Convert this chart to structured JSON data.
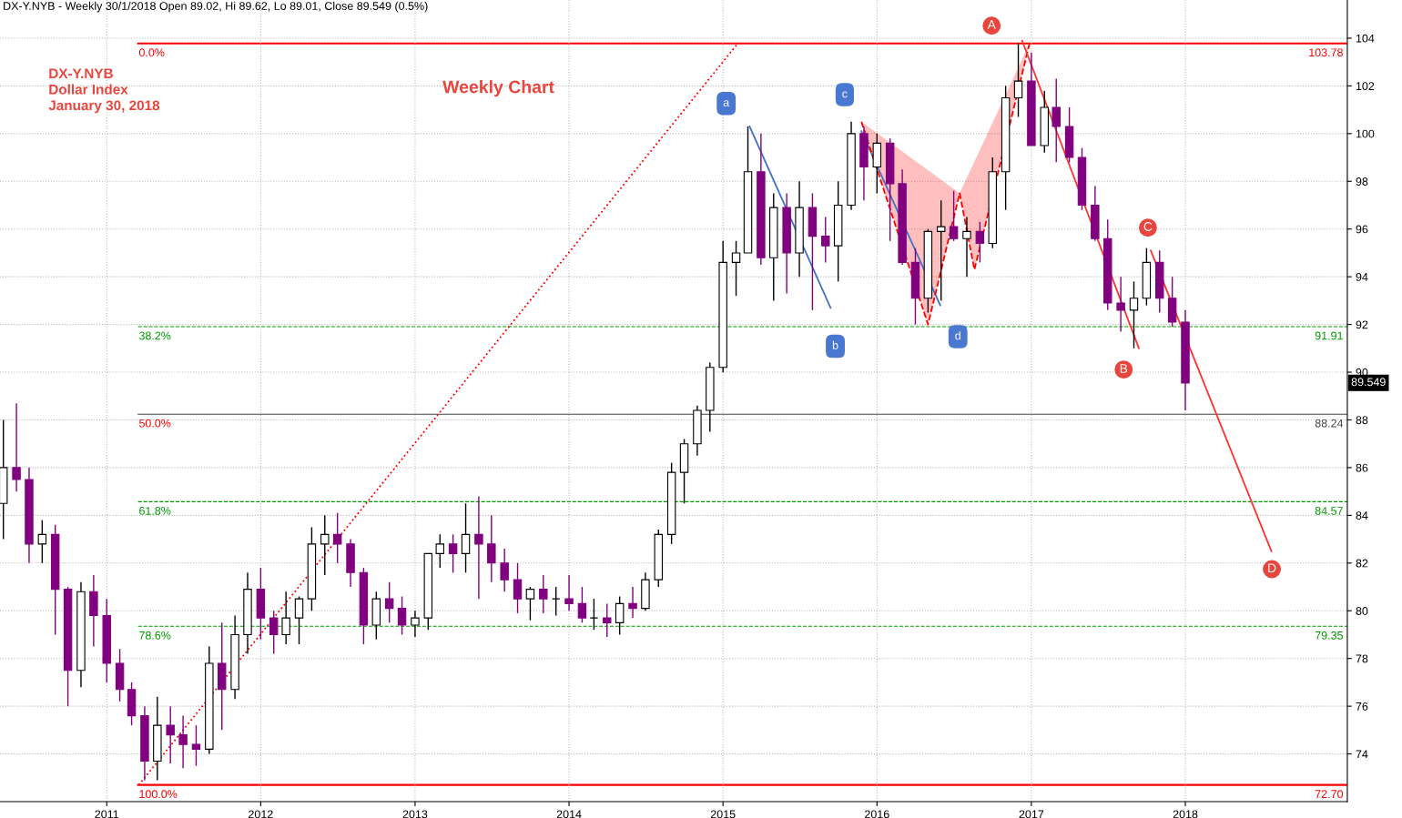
{
  "chart_data": {
    "type": "candlestick",
    "title": "DX-Y.NYB - Weekly 30/1/2018 Open 89.02, Hi 89.62, Lo 89.01, Close 89.549 (0.5%)",
    "colors": [
      "#ffffff",
      "#800080",
      "#800080",
      "#ffffff",
      "#800080",
      "#800080",
      "#ffffff",
      "#800080",
      "#800080",
      "#800080",
      "#800080",
      "#800080",
      "#ffffff",
      "#800080",
      "#800080",
      "#800080",
      "#ffffff",
      "#800080",
      "#ffffff",
      "#ffffff",
      "#800080",
      "#800080",
      "#ffffff",
      "#ffffff",
      "#ffffff",
      "#ffffff",
      "#800080",
      "#800080",
      "#800080",
      "#ffffff",
      "#800080",
      "#800080",
      "#ffffff",
      "#ffffff",
      "#ffffff",
      "#800080",
      "#ffffff",
      "#800080",
      "#800080",
      "#800080",
      "#800080",
      "#ffffff",
      "#800080",
      "#000000",
      "#800080",
      "#800080",
      "#000000",
      "#800080",
      "#ffffff",
      "#800080",
      "#ffffff",
      "#ffffff",
      "#ffffff",
      "#ffffff",
      "#ffffff",
      "#ffffff",
      "#ffffff",
      "#ffffff",
      "#ffffff",
      "#800080",
      "#ffffff",
      "#800080",
      "#ffffff",
      "#800080",
      "#800080",
      "#ffffff",
      "#ffffff",
      "#800080",
      "#ffffff",
      "#800080",
      "#800080",
      "#800080",
      "#ffffff",
      "#ffffff",
      "#800080",
      "#ffffff",
      "#800080",
      "#ffffff",
      "#ffffff",
      "#ffffff",
      "#800080",
      "#ffffff",
      "#800080",
      "#800080",
      "#800080",
      "#800080",
      "#800080",
      "#800080",
      "#ffffff",
      "#ffffff",
      "#800080",
      "#800080",
      "#800080"
    ],
    "x": [
      "2010-05",
      "2010-06",
      "2010-07",
      "2010-08",
      "2010-09",
      "2010-10",
      "2010-11",
      "2010-12",
      "2011-01",
      "2011-02",
      "2011-03",
      "2011-04",
      "2011-05",
      "2011-06",
      "2011-07",
      "2011-08",
      "2011-09",
      "2011-10",
      "2011-11",
      "2011-12",
      "2012-01",
      "2012-02",
      "2012-03",
      "2012-04",
      "2012-05",
      "2012-06",
      "2012-07",
      "2012-08",
      "2012-09",
      "2012-10",
      "2012-11",
      "2012-12",
      "2013-01",
      "2013-02",
      "2013-03",
      "2013-04",
      "2013-05",
      "2013-06",
      "2013-07",
      "2013-08",
      "2013-09",
      "2013-10",
      "2013-11",
      "2013-12",
      "2014-01",
      "2014-02",
      "2014-03",
      "2014-04",
      "2014-05",
      "2014-06",
      "2014-07",
      "2014-08",
      "2014-09",
      "2014-10",
      "2014-11",
      "2014-12",
      "2015-01",
      "2015-02",
      "2015-03",
      "2015-04",
      "2015-05",
      "2015-06",
      "2015-07",
      "2015-08",
      "2015-09",
      "2015-10",
      "2015-11",
      "2015-12",
      "2016-01",
      "2016-02",
      "2016-03",
      "2016-04",
      "2016-05",
      "2016-06",
      "2016-07",
      "2016-08",
      "2016-09",
      "2016-10",
      "2016-11",
      "2016-12",
      "2017-01",
      "2017-02",
      "2017-03",
      "2017-04",
      "2017-05",
      "2017-06",
      "2017-07",
      "2017-08",
      "2017-09",
      "2017-10",
      "2017-11",
      "2017-12",
      "2018-01"
    ],
    "ohlc": [
      [
        84.5,
        88.0,
        83.0,
        86.0
      ],
      [
        86.0,
        88.7,
        85.0,
        85.5
      ],
      [
        85.5,
        86.0,
        82.0,
        82.8
      ],
      [
        82.8,
        83.8,
        82.0,
        83.2
      ],
      [
        83.2,
        83.6,
        79.0,
        80.9
      ],
      [
        80.9,
        81.0,
        76.0,
        77.5
      ],
      [
        77.5,
        81.2,
        76.8,
        80.8
      ],
      [
        80.8,
        81.5,
        78.5,
        79.8
      ],
      [
        79.8,
        80.5,
        77.0,
        77.8
      ],
      [
        77.8,
        78.4,
        76.2,
        76.7
      ],
      [
        76.7,
        77.0,
        75.2,
        75.6
      ],
      [
        75.6,
        76.0,
        72.9,
        73.7
      ],
      [
        73.7,
        76.4,
        72.9,
        75.2
      ],
      [
        75.2,
        76.0,
        73.6,
        74.8
      ],
      [
        74.8,
        75.6,
        73.4,
        74.4
      ],
      [
        74.4,
        75.2,
        73.5,
        74.2
      ],
      [
        74.2,
        78.5,
        74.0,
        77.8
      ],
      [
        77.8,
        79.5,
        75.0,
        76.7
      ],
      [
        76.7,
        79.8,
        76.3,
        79.0
      ],
      [
        79.0,
        81.6,
        78.2,
        80.9
      ],
      [
        80.9,
        81.8,
        78.8,
        79.7
      ],
      [
        79.7,
        80.0,
        78.2,
        79.0
      ],
      [
        79.0,
        80.8,
        78.6,
        79.7
      ],
      [
        79.7,
        80.6,
        78.6,
        80.5
      ],
      [
        80.5,
        83.5,
        80.0,
        82.8
      ],
      [
        82.8,
        84.0,
        81.5,
        83.2
      ],
      [
        83.2,
        84.1,
        82.0,
        82.8
      ],
      [
        82.8,
        83.0,
        81.0,
        81.6
      ],
      [
        81.6,
        81.8,
        78.6,
        79.4
      ],
      [
        79.4,
        80.8,
        78.8,
        80.5
      ],
      [
        80.5,
        81.2,
        79.5,
        80.1
      ],
      [
        80.1,
        80.6,
        79.0,
        79.4
      ],
      [
        79.4,
        80.0,
        78.9,
        79.7
      ],
      [
        79.7,
        82.4,
        79.2,
        82.4
      ],
      [
        82.4,
        83.2,
        81.8,
        82.8
      ],
      [
        82.8,
        83.2,
        81.6,
        82.4
      ],
      [
        82.4,
        84.5,
        81.6,
        83.2
      ],
      [
        83.2,
        84.8,
        80.5,
        82.8
      ],
      [
        82.8,
        84.0,
        81.2,
        82.0
      ],
      [
        82.0,
        82.6,
        80.8,
        81.3
      ],
      [
        81.3,
        82.0,
        79.9,
        80.5
      ],
      [
        80.5,
        81.0,
        79.6,
        80.9
      ],
      [
        80.9,
        81.5,
        79.9,
        80.5
      ],
      [
        80.5,
        81.0,
        79.8,
        80.5
      ],
      [
        80.5,
        81.5,
        80.0,
        80.3
      ],
      [
        80.3,
        81.0,
        79.5,
        79.7
      ],
      [
        79.7,
        80.5,
        79.2,
        79.7
      ],
      [
        79.7,
        80.3,
        78.9,
        79.5
      ],
      [
        79.5,
        80.6,
        79.0,
        80.3
      ],
      [
        80.3,
        81.0,
        79.7,
        80.1
      ],
      [
        80.1,
        81.6,
        80.0,
        81.3
      ],
      [
        81.3,
        83.4,
        81.0,
        83.2
      ],
      [
        83.2,
        86.2,
        82.8,
        85.8
      ],
      [
        85.8,
        87.2,
        84.5,
        87.0
      ],
      [
        87.0,
        88.6,
        86.5,
        88.4
      ],
      [
        88.4,
        90.4,
        87.5,
        90.2
      ],
      [
        90.2,
        95.5,
        90.0,
        94.6
      ],
      [
        94.6,
        95.5,
        93.2,
        95.0
      ],
      [
        95.0,
        100.3,
        95.0,
        98.4
      ],
      [
        98.4,
        100.0,
        94.5,
        94.8
      ],
      [
        94.8,
        97.5,
        93.0,
        96.9
      ],
      [
        96.9,
        97.5,
        93.3,
        95.0
      ],
      [
        95.0,
        98.0,
        94.0,
        96.9
      ],
      [
        96.9,
        97.5,
        92.6,
        95.7
      ],
      [
        95.7,
        96.5,
        94.6,
        95.3
      ],
      [
        95.3,
        98.0,
        93.8,
        97.0
      ],
      [
        97.0,
        100.5,
        96.8,
        100.0
      ],
      [
        100.0,
        100.3,
        97.2,
        98.6
      ],
      [
        98.6,
        100.0,
        97.5,
        99.6
      ],
      [
        99.6,
        99.8,
        95.5,
        97.9
      ],
      [
        97.9,
        98.5,
        94.5,
        94.6
      ],
      [
        94.6,
        95.2,
        92.0,
        93.1
      ],
      [
        93.1,
        96.0,
        92.5,
        95.9
      ],
      [
        95.9,
        97.2,
        93.0,
        96.1
      ],
      [
        96.1,
        97.6,
        95.5,
        95.6
      ],
      [
        95.6,
        96.5,
        94.0,
        95.9
      ],
      [
        95.9,
        96.3,
        94.6,
        95.4
      ],
      [
        95.4,
        99.0,
        95.2,
        98.4
      ],
      [
        98.4,
        102.0,
        96.8,
        101.5
      ],
      [
        101.5,
        103.8,
        100.7,
        102.2
      ],
      [
        102.2,
        103.4,
        99.5,
        99.5
      ],
      [
        99.5,
        101.8,
        99.2,
        101.1
      ],
      [
        101.1,
        102.3,
        98.8,
        100.3
      ],
      [
        100.3,
        101.1,
        98.8,
        99.0
      ],
      [
        99.0,
        99.4,
        96.8,
        97.0
      ],
      [
        97.0,
        97.8,
        95.5,
        95.6
      ],
      [
        95.6,
        96.4,
        92.6,
        92.9
      ],
      [
        92.9,
        94.0,
        91.7,
        92.6
      ],
      [
        92.6,
        93.8,
        91.0,
        93.1
      ],
      [
        93.1,
        95.2,
        92.8,
        94.6
      ],
      [
        94.6,
        95.1,
        92.5,
        93.1
      ],
      [
        93.1,
        94.0,
        91.9,
        92.1
      ],
      [
        92.1,
        92.6,
        88.4,
        89.55
      ]
    ],
    "series": [
      {
        "type": "line",
        "color": "#ff0000",
        "line_style": "dotted",
        "x": [
          "2011-03-18",
          "2015-02-06"
        ],
        "values": [
          72.7,
          103.8
        ]
      },
      {
        "type": "line",
        "color": "#4472c4",
        "line_style": "solid",
        "x": [
          "2015-03-05",
          "2015-09-13"
        ],
        "values": [
          100.3,
          92.7
        ]
      },
      {
        "type": "line",
        "color": "#4472c4",
        "line_style": "solid",
        "x": [
          "2015-11-25",
          "2016-05-30"
        ],
        "values": [
          100.1,
          92.8
        ]
      },
      {
        "type": "line",
        "color": "#ff0000",
        "line_style": "dashed",
        "x": [
          "2015-11-25",
          "2016-05-01",
          "2016-07-15",
          "2016-08-19",
          "2016-12-28"
        ],
        "values": [
          100.5,
          92.0,
          97.5,
          94.3,
          103.8
        ]
      },
      {
        "type": "line",
        "color": "#ff3333",
        "line_style": "solid",
        "x": [
          "2016-12-10",
          "2017-09-13"
        ],
        "values": [
          103.9,
          91.0
        ]
      },
      {
        "type": "line",
        "color": "#ff3333",
        "line_style": "solid",
        "x": [
          "2017-10-11",
          "2018-07-24"
        ],
        "values": [
          95.1,
          82.5
        ]
      }
    ],
    "xlim": [
      "2010-04-23",
      "2019-01-20"
    ],
    "xticks": [
      "2011",
      "2012",
      "2013",
      "2014",
      "2015",
      "2016",
      "2017",
      "2018"
    ],
    "ylim": [
      72.0,
      105.6
    ],
    "yticks": [
      74,
      76,
      78,
      80,
      82,
      84,
      86,
      88,
      90,
      92,
      94,
      96,
      98,
      100,
      102,
      104
    ],
    "grid": true,
    "ref_lines": [
      {
        "axis": "y",
        "value": 103.78,
        "label": "103.78",
        "color": "#ff0000",
        "line_style": "solid"
      },
      {
        "axis": "y",
        "value": 91.91,
        "label": "91.91",
        "color": "#009900",
        "line_style": "dashed"
      },
      {
        "axis": "y",
        "value": 88.24,
        "label": "88.24",
        "color": "#444444",
        "line_style": "solid"
      },
      {
        "axis": "y",
        "value": 84.57,
        "label": "84.57",
        "color": "#009900",
        "line_style": "dashed"
      },
      {
        "axis": "y",
        "value": 79.35,
        "label": "79.35",
        "color": "#009900",
        "line_style": "dashed"
      },
      {
        "axis": "y",
        "value": 72.7,
        "label": "72.70",
        "color": "#ff0000",
        "line_style": "solid"
      }
    ],
    "annotations": [
      "DX-Y.NYB\nDollar Index\nJanuary 30, 2018",
      "Weekly Chart",
      "A",
      "B",
      "C",
      "D",
      "a",
      "b",
      "c",
      "d",
      "89.549",
      {
        "text": "0.0%",
        "x": "2011-03-18",
        "y": 103.78
      },
      {
        "text": "38.2%",
        "x": "2011-03-18",
        "y": 91.91
      },
      {
        "text": "50.0%",
        "x": "2011-03-18",
        "y": 88.24
      },
      {
        "text": "61.8%",
        "x": "2011-03-18",
        "y": 84.57
      },
      {
        "text": "78.6%",
        "x": "2011-03-18",
        "y": 79.35
      },
      {
        "text": "100.0%",
        "x": "2011-03-18",
        "y": 72.7
      }
    ]
  }
}
